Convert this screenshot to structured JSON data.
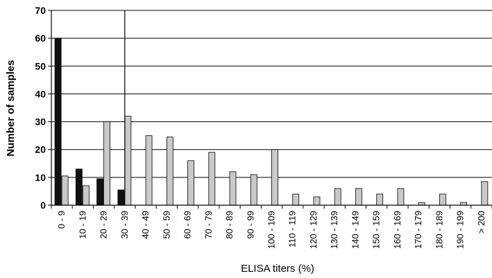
{
  "chart_data": {
    "type": "bar",
    "title": "",
    "xlabel": "ELISA titers (%)",
    "ylabel": "Number of samples",
    "ylim": [
      0,
      70
    ],
    "yticks": [
      0,
      10,
      20,
      30,
      40,
      50,
      60,
      70
    ],
    "grid": "horizontal",
    "reference_line_category": "30 - 39",
    "categories": [
      "0 - 9",
      "10 - 19",
      "20 - 29",
      "30 - 39",
      "40 - 49",
      "50 - 59",
      "60 - 69",
      "70 - 79",
      "80 - 89",
      "90 - 99",
      "100 - 109",
      "110 - 119",
      "120 - 129",
      "130 - 139",
      "140 - 149",
      "150 - 159",
      "160 - 169",
      "170 - 179",
      "180 - 189",
      "190 - 199",
      "> 200"
    ],
    "series": [
      {
        "color": "#111111",
        "values": [
          60,
          13,
          9.5,
          5.5,
          0,
          0,
          0,
          0,
          0,
          0,
          0,
          0,
          0,
          0,
          0,
          0,
          0,
          0,
          0,
          0,
          0
        ]
      },
      {
        "color": "#c9c9c9",
        "values": [
          10.5,
          7,
          30,
          32,
          25,
          24.5,
          16,
          19,
          12,
          11,
          20,
          4,
          3,
          6,
          6,
          4,
          6,
          1,
          4,
          1,
          8.5
        ]
      }
    ]
  }
}
